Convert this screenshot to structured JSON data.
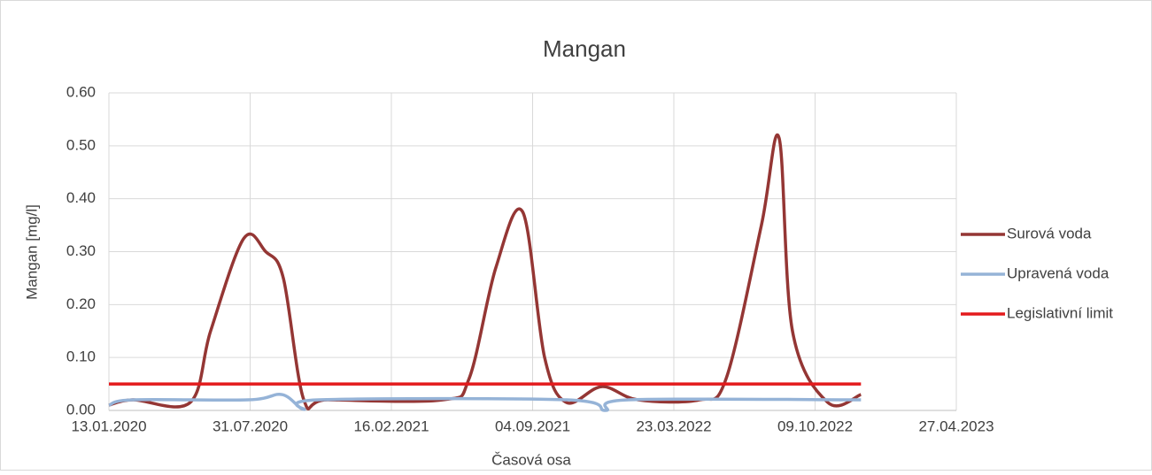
{
  "chart_data": {
    "type": "line",
    "title": "Mangan",
    "y_label": "Mangan [mg/l]",
    "x_label": "Časová osa",
    "xlim": [
      "13.01.2020",
      "27.04.2023"
    ],
    "xticks": [
      "13.01.2020",
      "31.07.2020",
      "16.02.2021",
      "04.09.2021",
      "23.03.2022",
      "09.10.2022",
      "27.04.2023"
    ],
    "ylim": [
      0,
      0.6
    ],
    "yticks": [
      {
        "value": 0,
        "label": "0.00"
      },
      {
        "value": 0.1,
        "label": "0.10"
      },
      {
        "value": 0.2,
        "label": "0.20"
      },
      {
        "value": 0.3,
        "label": "0.30"
      },
      {
        "value": 0.4,
        "label": "0.40"
      },
      {
        "value": 0.5,
        "label": "0.50"
      },
      {
        "value": 0.6,
        "label": "0.60"
      }
    ],
    "grid": true,
    "legend": "right",
    "smooth": true,
    "series": [
      {
        "name": "Surová voda",
        "color": "#943634",
        "x": [
          "13.01.2020",
          "16.02.2020",
          "07.05.2020",
          "05.06.2020",
          "22.07.2020",
          "22.08.2020",
          "16.09.2020",
          "15.10.2020",
          "18.11.2020",
          "30.04.2021",
          "06.06.2021",
          "14.07.2021",
          "21.08.2021",
          "21.09.2021",
          "22.10.2021",
          "11.12.2021",
          "31.01.2022",
          "28.04.2022",
          "05.06.2022",
          "25.07.2022",
          "19.08.2022",
          "07.09.2022",
          "27.10.2022",
          "13.12.2022"
        ],
        "values": [
          0.01,
          0.02,
          0.015,
          0.15,
          0.325,
          0.3,
          0.25,
          0.02,
          0.02,
          0.02,
          0.06,
          0.27,
          0.375,
          0.1,
          0.015,
          0.045,
          0.02,
          0.02,
          0.06,
          0.35,
          0.515,
          0.15,
          0.015,
          0.03
        ]
      },
      {
        "name": "Upravená voda",
        "color": "#95b3d7",
        "x": [
          "13.01.2020",
          "16.02.2020",
          "28.07.2020",
          "14.09.2020",
          "15.10.2020",
          "05.11.2020",
          "22.10.2021",
          "16.12.2021",
          "18.01.2022",
          "13.12.2022"
        ],
        "values": [
          0.01,
          0.02,
          0.02,
          0.03,
          0.002,
          0.02,
          0.02,
          0.0,
          0.02,
          0.02
        ]
      },
      {
        "name": "Legislativní limit",
        "color": "#e31a1c",
        "x": [
          "13.01.2020",
          "13.12.2022"
        ],
        "values": [
          0.05,
          0.05
        ]
      }
    ]
  }
}
